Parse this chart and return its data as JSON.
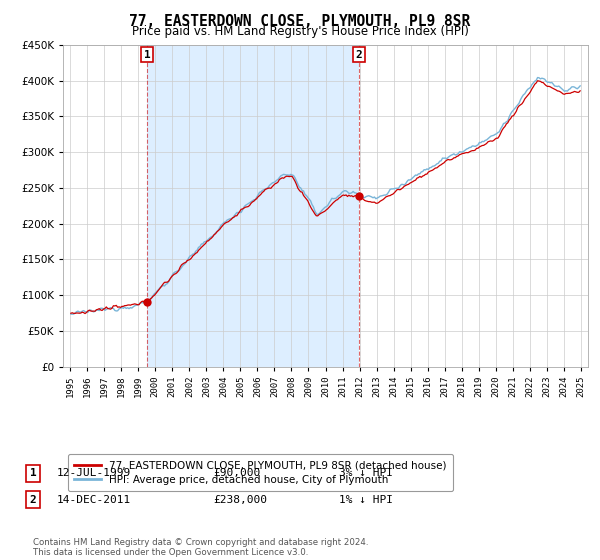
{
  "title": "77, EASTERDOWN CLOSE, PLYMOUTH, PL9 8SR",
  "subtitle": "Price paid vs. HM Land Registry's House Price Index (HPI)",
  "sale1_date": "12-JUL-1999",
  "sale1_price": 90000,
  "sale1_label": "3% ↓ HPI",
  "sale1_year": 1999.53,
  "sale2_date": "14-DEC-2011",
  "sale2_price": 238000,
  "sale2_label": "1% ↓ HPI",
  "sale2_year": 2011.95,
  "legend_line1": "77, EASTERDOWN CLOSE, PLYMOUTH, PL9 8SR (detached house)",
  "legend_line2": "HPI: Average price, detached house, City of Plymouth",
  "footnote": "Contains HM Land Registry data © Crown copyright and database right 2024.\nThis data is licensed under the Open Government Licence v3.0.",
  "hpi_color": "#7ab5d8",
  "price_color": "#cc0000",
  "bg_color": "#ddeeff",
  "ylim": [
    0,
    450000
  ],
  "yticks": [
    0,
    50000,
    100000,
    150000,
    200000,
    250000,
    300000,
    350000,
    400000,
    450000
  ]
}
